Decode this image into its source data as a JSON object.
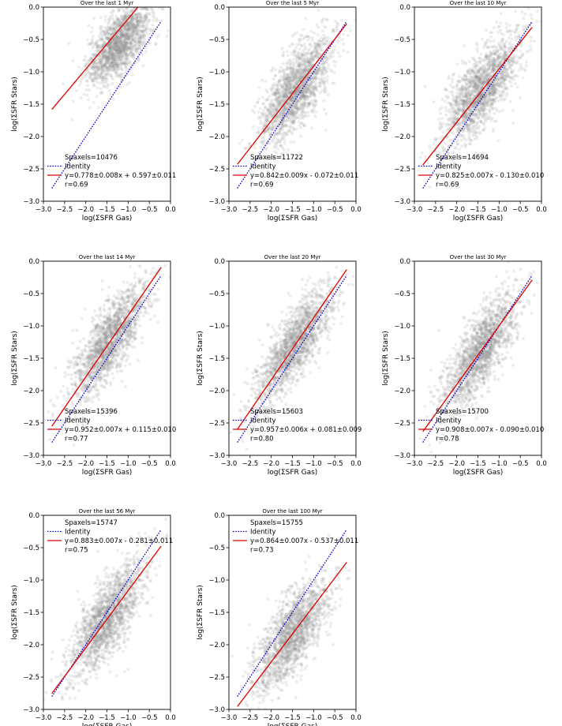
{
  "figure": {
    "xlim": [
      -3.0,
      0.0
    ],
    "ylim": [
      -3.0,
      0.0
    ],
    "xticks": [
      "−3.0",
      "−2.5",
      "−2.0",
      "−1.5",
      "−1.0",
      "−0.5",
      "0.0"
    ],
    "yticks": [
      "0.0",
      "−0.5",
      "−1.0",
      "−1.5",
      "−2.0",
      "−2.5",
      "−3.0"
    ],
    "xlabel": "log(ΣSFR Gas)",
    "ylabel": "log(ΣSFR Stars)",
    "identity_label": "Identity",
    "colors": {
      "scatter": "#8c8c8c",
      "identity": "#0000cc",
      "fit": "#dd0000"
    }
  },
  "chart_data": [
    {
      "type": "scatter",
      "title": "Over the last 1 Myr",
      "spaxels_text": "Spaxels=10476",
      "fit_text": "y=0.778±0.008x + 0.597±0.011",
      "r_text": "r=0.69",
      "slope": 0.778,
      "intercept": 0.597,
      "legend": "bottom",
      "cloud": {
        "cx": -1.2,
        "cy": -0.55,
        "sx": 0.38,
        "sy": 0.32,
        "rho": 0.65
      }
    },
    {
      "type": "scatter",
      "title": "Over the last 5 Myr",
      "spaxels_text": "Spaxels=11722",
      "fit_text": "y=0.842±0.009x - 0.072±0.011",
      "r_text": "r=0.69",
      "slope": 0.842,
      "intercept": -0.072,
      "legend": "bottom",
      "cloud": {
        "cx": -1.45,
        "cy": -1.3,
        "sx": 0.42,
        "sy": 0.42,
        "rho": 0.7
      }
    },
    {
      "type": "scatter",
      "title": "Over the last 10 Myr",
      "spaxels_text": "Spaxels=14694",
      "fit_text": "y=0.825±0.007x - 0.130±0.010",
      "r_text": "r=0.69",
      "slope": 0.825,
      "intercept": -0.13,
      "legend": "bottom",
      "cloud": {
        "cx": -1.45,
        "cy": -1.3,
        "sx": 0.45,
        "sy": 0.42,
        "rho": 0.72
      }
    },
    {
      "type": "scatter",
      "title": "Over the last 14 Myr",
      "spaxels_text": "Spaxels=15396",
      "fit_text": "y=0.952±0.007x + 0.115±0.010",
      "r_text": "r=0.77",
      "slope": 0.952,
      "intercept": 0.115,
      "legend": "bottom",
      "cloud": {
        "cx": -1.45,
        "cy": -1.25,
        "sx": 0.45,
        "sy": 0.45,
        "rho": 0.78
      }
    },
    {
      "type": "scatter",
      "title": "Over the last 20 Myr",
      "spaxels_text": "Spaxels=15603",
      "fit_text": "y=0.957±0.006x + 0.081±0.009",
      "r_text": "r=0.80",
      "slope": 0.957,
      "intercept": 0.081,
      "legend": "bottom",
      "cloud": {
        "cx": -1.45,
        "cy": -1.3,
        "sx": 0.45,
        "sy": 0.45,
        "rho": 0.8
      }
    },
    {
      "type": "scatter",
      "title": "Over the last 30 Myr",
      "spaxels_text": "Spaxels=15700",
      "fit_text": "y=0.908±0.007x - 0.090±0.010",
      "r_text": "r=0.78",
      "slope": 0.908,
      "intercept": -0.09,
      "legend": "bottom",
      "cloud": {
        "cx": -1.45,
        "cy": -1.4,
        "sx": 0.45,
        "sy": 0.45,
        "rho": 0.78
      }
    },
    {
      "type": "scatter",
      "title": "Over the last 56 Myr",
      "spaxels_text": "Spaxels=15747",
      "fit_text": "y=0.883±0.007x - 0.281±0.011",
      "r_text": "r=0.75",
      "slope": 0.883,
      "intercept": -0.281,
      "legend": "top",
      "cloud": {
        "cx": -1.5,
        "cy": -1.6,
        "sx": 0.45,
        "sy": 0.45,
        "rho": 0.75
      }
    },
    {
      "type": "scatter",
      "title": "Over the last 100 Myr",
      "spaxels_text": "Spaxels=15755",
      "fit_text": "y=0.864±0.007x - 0.537±0.011",
      "r_text": "r=0.73",
      "slope": 0.864,
      "intercept": -0.537,
      "legend": "top",
      "cloud": {
        "cx": -1.5,
        "cy": -1.85,
        "sx": 0.45,
        "sy": 0.45,
        "rho": 0.73
      }
    }
  ]
}
